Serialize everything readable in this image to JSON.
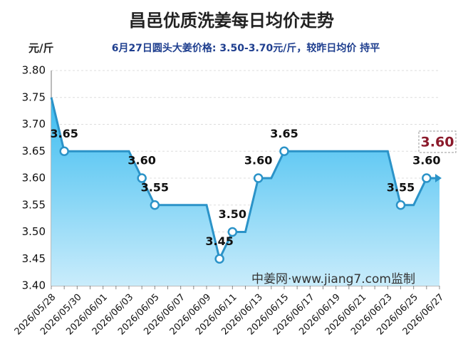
{
  "chart_data": {
    "type": "line",
    "title": "昌邑优质洗姜每日均价走势",
    "y_unit": "元/斤",
    "subtitle": "6月27日圆头大姜价格: 3.50-3.70元/斤，较昨日均价 持平",
    "watermark": "中姜网·www.jiang7.com监制",
    "x": [
      "2026/05/28",
      null,
      "2026/05/30",
      null,
      "2026/06/01",
      null,
      "2026/06/03",
      null,
      "2026/06/05",
      null,
      "2026/06/07",
      null,
      "2026/06/09",
      null,
      "2026/06/11",
      null,
      "2026/06/13",
      null,
      "2026/06/15",
      null,
      "2026/06/17",
      null,
      "2026/06/19",
      null,
      "2026/06/21",
      null,
      "2026/06/23",
      null,
      "2026/06/25",
      null,
      "2026/06/27"
    ],
    "series": [
      {
        "name": "均价",
        "color": "#2b93c8",
        "values": [
          3.75,
          3.65,
          3.65,
          3.65,
          3.65,
          3.65,
          3.65,
          3.6,
          3.55,
          3.55,
          3.55,
          3.55,
          3.55,
          3.45,
          3.5,
          3.5,
          3.6,
          3.6,
          3.65,
          3.65,
          3.65,
          3.65,
          3.65,
          3.65,
          3.65,
          3.65,
          3.65,
          3.55,
          3.55,
          3.6,
          3.6
        ],
        "value_labels": [
          null,
          "3.65",
          null,
          null,
          null,
          null,
          null,
          "3.60",
          "3.55",
          null,
          null,
          null,
          null,
          "3.45",
          "3.50",
          null,
          "3.60",
          null,
          "3.65",
          null,
          null,
          null,
          null,
          null,
          null,
          null,
          null,
          "3.55",
          null,
          "3.60",
          null
        ]
      }
    ],
    "last_value_label": "3.60",
    "ylim": [
      3.4,
      3.8
    ],
    "yticks": [
      {
        "value": 3.4,
        "label": "3.40"
      },
      3.45,
      {
        "value": 3.5,
        "label": "3.50"
      },
      3.55,
      {
        "value": 3.6,
        "label": "3.60"
      },
      3.65,
      {
        "value": 3.7,
        "label": "3.70"
      },
      3.75,
      {
        "value": 3.8,
        "label": "3.80"
      }
    ],
    "grid": true
  }
}
